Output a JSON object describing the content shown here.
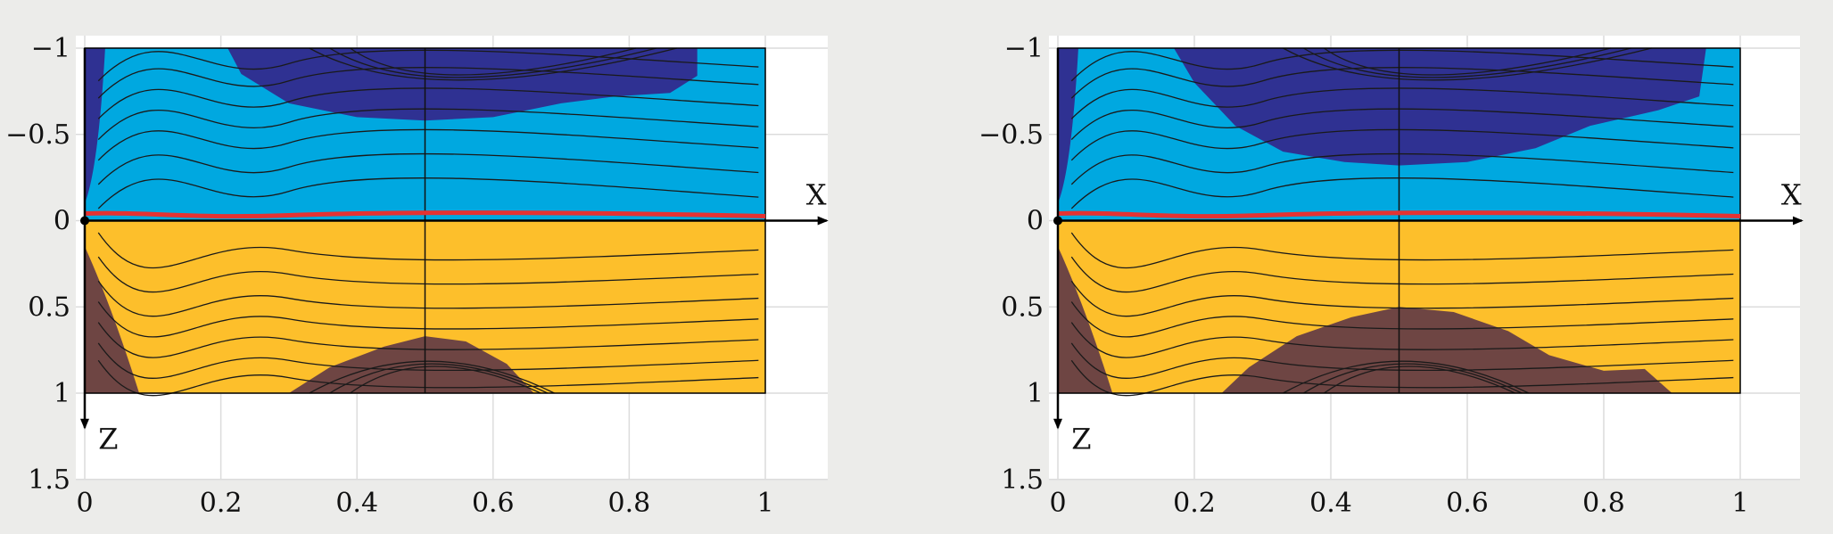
{
  "chart_data": [
    {
      "type": "contour",
      "panel": "left",
      "x_axis_label": "X",
      "z_axis_label": "Z",
      "xlim": [
        0,
        1.1
      ],
      "ylim": [
        -1,
        1.5
      ],
      "y_inverted": true,
      "x_ticks": [
        "0",
        "0.2",
        "0.4",
        "0.6",
        "0.8",
        "1"
      ],
      "y_ticks": [
        "−1",
        "−0.5",
        "0",
        "0.5",
        "1",
        "1.5"
      ],
      "x_tick_values": [
        0,
        0.2,
        0.4,
        0.6,
        0.8,
        1
      ],
      "y_tick_values": [
        -1,
        -0.5,
        0,
        0.5,
        1,
        1.5
      ],
      "grid": true,
      "interface_z": 0,
      "colors": {
        "deep_upper": "#2f3192",
        "upper": "#00a8e0",
        "lower": "#fdbf2b",
        "deep_lower": "#6e4543",
        "interface": "#e53232"
      },
      "upper_deep_region": [
        [
          0.21,
          -1
        ],
        [
          0.23,
          -0.85
        ],
        [
          0.3,
          -0.68
        ],
        [
          0.4,
          -0.6
        ],
        [
          0.5,
          -0.58
        ],
        [
          0.6,
          -0.6
        ],
        [
          0.7,
          -0.68
        ],
        [
          0.78,
          -0.72
        ],
        [
          0.86,
          -0.74
        ],
        [
          0.9,
          -0.84
        ],
        [
          0.9,
          -1
        ]
      ],
      "lower_deep_region": [
        [
          0.3,
          1
        ],
        [
          0.36,
          0.85
        ],
        [
          0.44,
          0.73
        ],
        [
          0.5,
          0.67
        ],
        [
          0.56,
          0.7
        ],
        [
          0.62,
          0.83
        ],
        [
          0.66,
          1
        ]
      ]
    },
    {
      "type": "contour",
      "panel": "right",
      "x_axis_label": "X",
      "z_axis_label": "Z",
      "xlim": [
        0,
        1.1
      ],
      "ylim": [
        -1,
        1.5
      ],
      "y_inverted": true,
      "x_ticks": [
        "0",
        "0.2",
        "0.4",
        "0.6",
        "0.8",
        "1"
      ],
      "y_ticks": [
        "−1",
        "−0.5",
        "0",
        "0.5",
        "1",
        "1.5"
      ],
      "x_tick_values": [
        0,
        0.2,
        0.4,
        0.6,
        0.8,
        1
      ],
      "y_tick_values": [
        -1,
        -0.5,
        0,
        0.5,
        1,
        1.5
      ],
      "grid": true,
      "interface_z": 0,
      "colors": {
        "deep_upper": "#2f3192",
        "upper": "#00a8e0",
        "lower": "#fdbf2b",
        "deep_lower": "#6e4543",
        "interface": "#e53232"
      },
      "upper_deep_region": [
        [
          0.17,
          -1
        ],
        [
          0.2,
          -0.8
        ],
        [
          0.26,
          -0.55
        ],
        [
          0.33,
          -0.4
        ],
        [
          0.42,
          -0.34
        ],
        [
          0.5,
          -0.32
        ],
        [
          0.6,
          -0.34
        ],
        [
          0.7,
          -0.42
        ],
        [
          0.78,
          -0.55
        ],
        [
          0.88,
          -0.64
        ],
        [
          0.94,
          -0.72
        ],
        [
          0.95,
          -1
        ]
      ],
      "lower_deep_region": [
        [
          0.24,
          1
        ],
        [
          0.28,
          0.85
        ],
        [
          0.35,
          0.67
        ],
        [
          0.43,
          0.56
        ],
        [
          0.5,
          0.5
        ],
        [
          0.58,
          0.53
        ],
        [
          0.66,
          0.64
        ],
        [
          0.72,
          0.78
        ],
        [
          0.8,
          0.87
        ],
        [
          0.86,
          0.86
        ],
        [
          0.9,
          1
        ]
      ]
    }
  ]
}
